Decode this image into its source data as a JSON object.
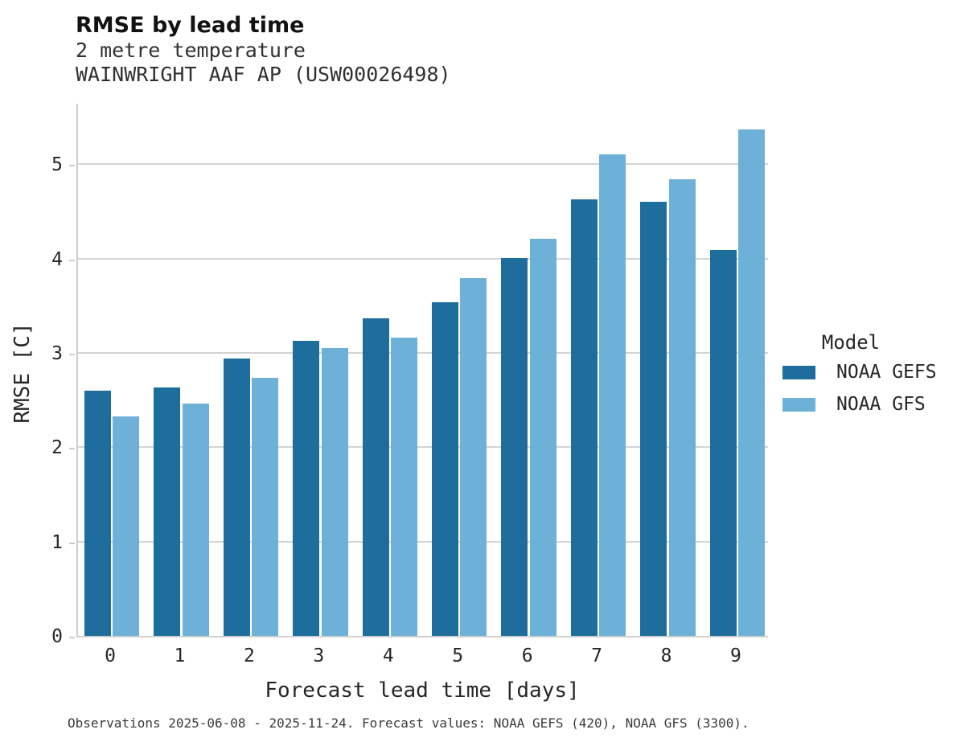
{
  "header": {
    "title": "RMSE by lead time",
    "subtitle_line1": "2 metre temperature",
    "subtitle_line2": "WAINWRIGHT AAF AP (USW00026498)"
  },
  "chart_data": {
    "type": "bar",
    "title": "RMSE by lead time",
    "subtitle": "2 metre temperature — WAINWRIGHT AAF AP (USW00026498)",
    "xlabel": "Forecast lead time [days]",
    "ylabel": "RMSE [C]",
    "categories": [
      "0",
      "1",
      "2",
      "3",
      "4",
      "5",
      "6",
      "7",
      "8",
      "9"
    ],
    "series": [
      {
        "name": "NOAA GEFS",
        "color": "#1d6d9d",
        "values": [
          2.6,
          2.63,
          2.94,
          3.13,
          3.37,
          3.54,
          4.01,
          4.63,
          4.6,
          4.09
        ]
      },
      {
        "name": "NOAA GFS",
        "color": "#6db1d8",
        "values": [
          2.33,
          2.46,
          2.74,
          3.05,
          3.16,
          3.79,
          4.21,
          5.11,
          4.84,
          5.37
        ]
      }
    ],
    "ylim": [
      0,
      5.66
    ],
    "yticks": [
      0,
      1,
      2,
      3,
      4,
      5
    ],
    "grid": "horizontal",
    "legend_position": "right-of-plot"
  },
  "legend": {
    "title": "Model"
  },
  "footer": {
    "text": "Observations 2025-06-08 - 2025-11-24. Forecast values: NOAA GEFS (420), NOAA GFS (3300)."
  },
  "colors": {
    "series_gefs": "#1d6d9d",
    "series_gfs": "#6db1d8",
    "gridline": "#d4d4d4",
    "spine": "#cccccc",
    "title_text": "#121212",
    "body_text": "#262626"
  }
}
